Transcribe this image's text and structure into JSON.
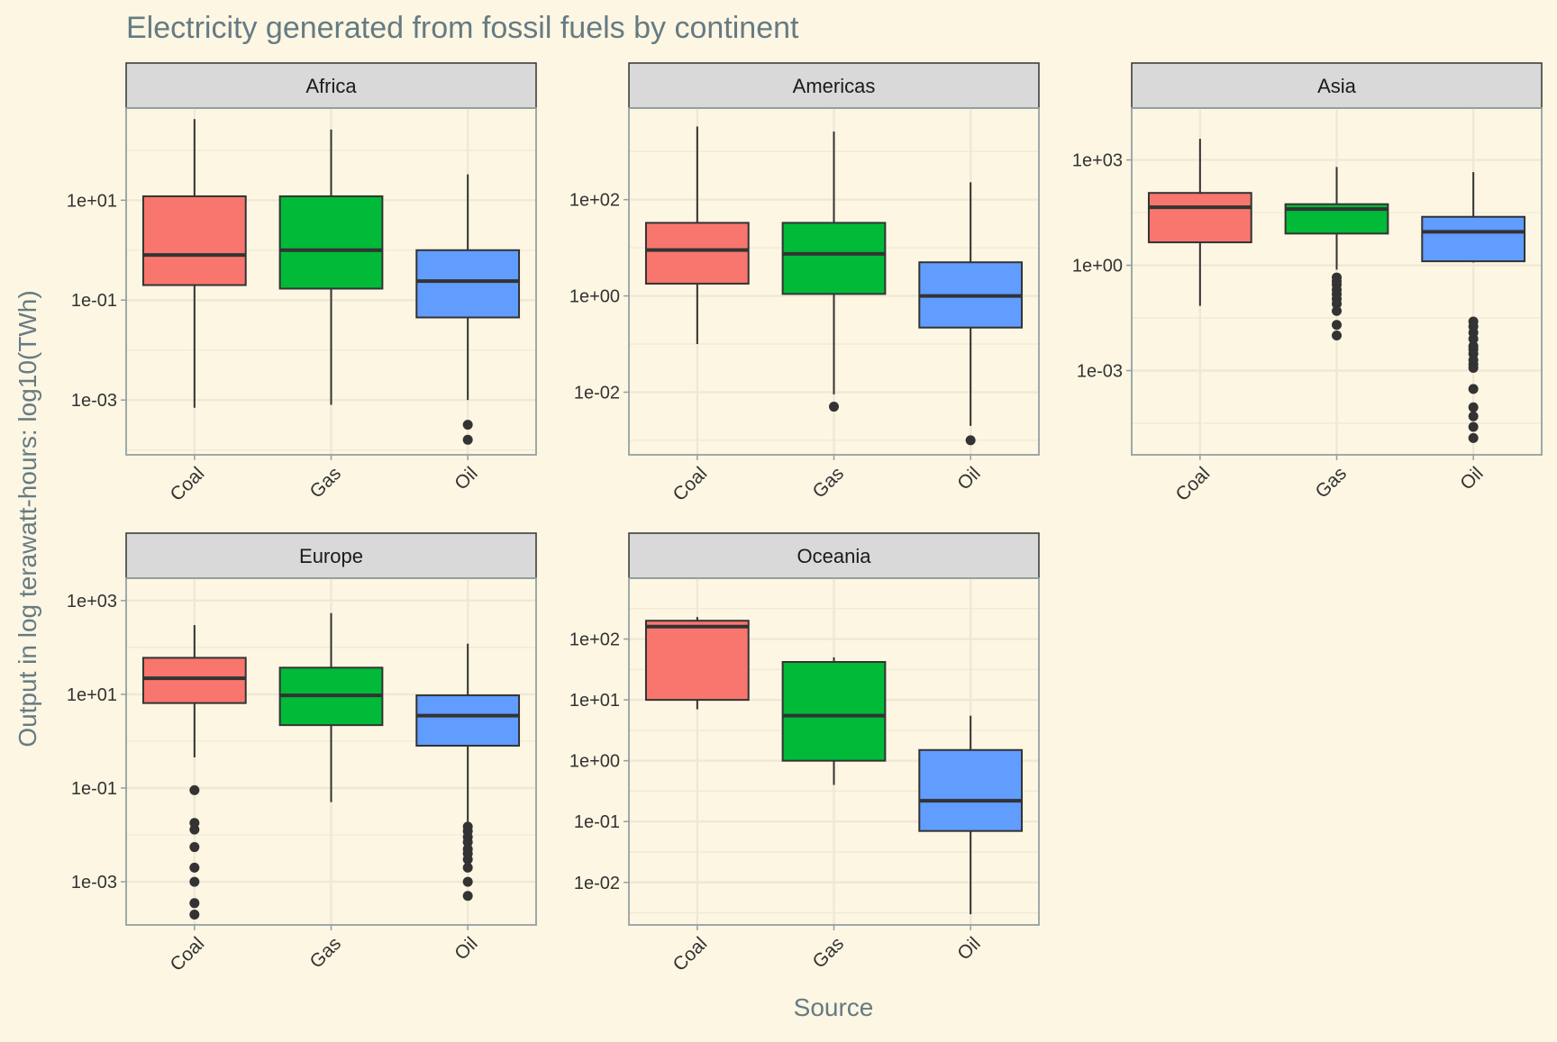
{
  "chart_data": {
    "type": "boxplot",
    "title": "Electricity generated from fossil fuels by continent",
    "xlabel": "Source",
    "ylabel": "Output in log terawatt-hours: log10(TWh)",
    "y_scale": "log10",
    "grid": true,
    "categories": [
      "Coal",
      "Gas",
      "Oil"
    ],
    "colors": {
      "Coal": "#f8766d",
      "Gas": "#00ba38",
      "Oil": "#619cff"
    },
    "panels": [
      {
        "name": "Africa",
        "ylim": [
          8e-05,
          700
        ],
        "yticks": [
          {
            "value": 10,
            "label": "1e+01"
          },
          {
            "value": 0.1,
            "label": "1e-01"
          },
          {
            "value": 0.001,
            "label": "1e-03"
          }
        ],
        "boxes": [
          {
            "category": "Coal",
            "lower_whisker": 0.0007,
            "q1": 0.2,
            "median": 0.8,
            "q3": 12,
            "upper_whisker": 420,
            "outliers": []
          },
          {
            "category": "Gas",
            "lower_whisker": 0.0008,
            "q1": 0.17,
            "median": 1.0,
            "q3": 12,
            "upper_whisker": 260,
            "outliers": []
          },
          {
            "category": "Oil",
            "lower_whisker": 0.001,
            "q1": 0.045,
            "median": 0.24,
            "q3": 1.0,
            "upper_whisker": 33,
            "outliers": [
              0.00032,
              0.00016
            ]
          }
        ]
      },
      {
        "name": "Americas",
        "ylim": [
          0.0005,
          8000
        ],
        "yticks": [
          {
            "value": 100,
            "label": "1e+02"
          },
          {
            "value": 1,
            "label": "1e+00"
          },
          {
            "value": 0.01,
            "label": "1e-02"
          }
        ],
        "boxes": [
          {
            "category": "Coal",
            "lower_whisker": 0.1,
            "q1": 1.8,
            "median": 9,
            "q3": 33,
            "upper_whisker": 3300,
            "outliers": []
          },
          {
            "category": "Gas",
            "lower_whisker": 0.009,
            "q1": 1.1,
            "median": 7.5,
            "q3": 33,
            "upper_whisker": 2600,
            "outliers": [
              0.005
            ]
          },
          {
            "category": "Oil",
            "lower_whisker": 0.002,
            "q1": 0.22,
            "median": 1.0,
            "q3": 5,
            "upper_whisker": 230,
            "outliers": [
              0.001
            ]
          }
        ]
      },
      {
        "name": "Asia",
        "ylim": [
          4e-06,
          30000
        ],
        "yticks": [
          {
            "value": 1000,
            "label": "1e+03"
          },
          {
            "value": 1,
            "label": "1e+00"
          },
          {
            "value": 0.001,
            "label": "1e-03"
          }
        ],
        "boxes": [
          {
            "category": "Coal",
            "lower_whisker": 0.07,
            "q1": 4.5,
            "median": 45,
            "q3": 115,
            "upper_whisker": 4000,
            "outliers": []
          },
          {
            "category": "Gas",
            "lower_whisker": 0.75,
            "q1": 8,
            "median": 40,
            "q3": 55,
            "upper_whisker": 630,
            "outliers": [
              0.45,
              0.35,
              0.28,
              0.2,
              0.15,
              0.11,
              0.08,
              0.05,
              0.02,
              0.01
            ]
          },
          {
            "category": "Oil",
            "lower_whisker": 1.2,
            "q1": 1.3,
            "median": 9,
            "q3": 24,
            "upper_whisker": 450,
            "outliers": [
              0.025,
              0.018,
              0.012,
              0.008,
              0.005,
              0.004,
              0.003,
              0.002,
              0.0015,
              0.0012,
              0.0003,
              9e-05,
              5e-05,
              2.5e-05,
              1.2e-05
            ]
          }
        ]
      },
      {
        "name": "Europe",
        "ylim": [
          0.00012,
          3000
        ],
        "yticks": [
          {
            "value": 1000,
            "label": "1e+03"
          },
          {
            "value": 10,
            "label": "1e+01"
          },
          {
            "value": 0.1,
            "label": "1e-01"
          },
          {
            "value": 0.001,
            "label": "1e-03"
          }
        ],
        "boxes": [
          {
            "category": "Coal",
            "lower_whisker": 0.45,
            "q1": 6.5,
            "median": 22,
            "q3": 60,
            "upper_whisker": 300,
            "outliers": [
              0.09,
              0.018,
              0.013,
              0.0055,
              0.002,
              0.001,
              0.00035,
              0.0002
            ]
          },
          {
            "category": "Gas",
            "lower_whisker": 0.05,
            "q1": 2.2,
            "median": 9.5,
            "q3": 37,
            "upper_whisker": 540,
            "outliers": []
          },
          {
            "category": "Oil",
            "lower_whisker": 0.018,
            "q1": 0.8,
            "median": 3.5,
            "q3": 9.5,
            "upper_whisker": 120,
            "outliers": [
              0.015,
              0.012,
              0.009,
              0.007,
              0.005,
              0.004,
              0.003,
              0.002,
              0.001,
              0.0005
            ]
          }
        ]
      },
      {
        "name": "Oceania",
        "ylim": [
          0.002,
          1000
        ],
        "yticks": [
          {
            "value": 100,
            "label": "1e+02"
          },
          {
            "value": 10,
            "label": "1e+01"
          },
          {
            "value": 1,
            "label": "1e+00"
          },
          {
            "value": 0.1,
            "label": "1e-01"
          },
          {
            "value": 0.01,
            "label": "1e-02"
          }
        ],
        "boxes": [
          {
            "category": "Coal",
            "lower_whisker": 7,
            "q1": 10,
            "median": 160,
            "q3": 200,
            "upper_whisker": 230,
            "outliers": []
          },
          {
            "category": "Gas",
            "lower_whisker": 0.4,
            "q1": 1.0,
            "median": 5.5,
            "q3": 42,
            "upper_whisker": 50,
            "outliers": []
          },
          {
            "category": "Oil",
            "lower_whisker": 0.003,
            "q1": 0.07,
            "median": 0.22,
            "q3": 1.5,
            "upper_whisker": 5.5,
            "outliers": []
          }
        ]
      }
    ]
  }
}
